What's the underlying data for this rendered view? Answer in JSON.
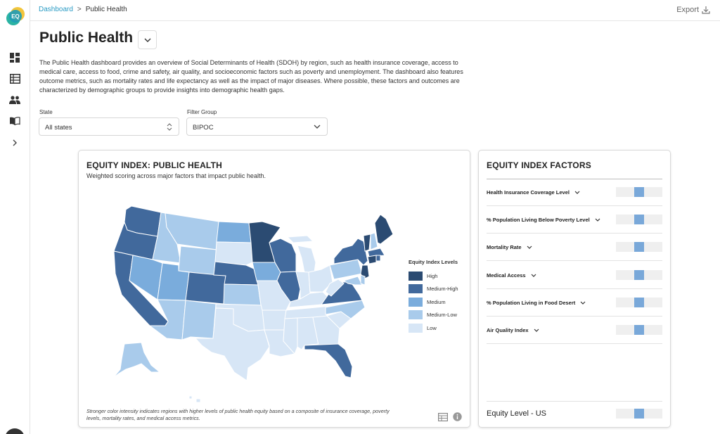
{
  "app": {
    "logo_text": "EQ"
  },
  "sidebar": {
    "items": [
      {
        "icon": "dashboard-icon"
      },
      {
        "icon": "table-icon"
      },
      {
        "icon": "people-icon"
      },
      {
        "icon": "book-icon"
      },
      {
        "icon": "chevron-right-icon"
      }
    ]
  },
  "breadcrumb": {
    "root": "Dashboard",
    "separator": ">",
    "current": "Public Health"
  },
  "topbar": {
    "export_label": "Export"
  },
  "page": {
    "title": "Public Health",
    "description": "The Public Health dashboard provides an overview of Social Determinants of Health (SDOH) by region, such as health insurance coverage, access to medical care, access to food, crime and safety, air quality, and socioeconomic factors such as poverty and unemployment. The dashboard also features outcome metrics, such as mortality rates and life expectancy as well as the impact of major diseases. Where possible, these factors and outcomes are characterized by demographic groups to provide insights into demographic health gaps."
  },
  "filters": {
    "state": {
      "label": "State",
      "value": "All states"
    },
    "group": {
      "label": "Filter Group",
      "value": "BIPOC"
    }
  },
  "map_card": {
    "title": "EQUITY INDEX: PUBLIC HEALTH",
    "subtitle": "Weighted scoring across major factors that impact public health.",
    "footnote": "Stronger color intensity indicates regions with higher levels of public health equity based on a composite of insurance coverage, poverty levels, mortality rates, and medical access metrics.",
    "legend_title": "Equity Index Levels",
    "levels": [
      {
        "label": "High",
        "color": "#2b4b72"
      },
      {
        "label": "Medium-High",
        "color": "#41699c"
      },
      {
        "label": "Medium",
        "color": "#7aacdc"
      },
      {
        "label": "Medium-Low",
        "color": "#a9cbeb"
      },
      {
        "label": "Low",
        "color": "#d7e6f6"
      }
    ]
  },
  "factors_card": {
    "title": "EQUITY INDEX FACTORS",
    "factors": [
      {
        "label": "Health Insurance Coverage Level",
        "value": 0.5
      },
      {
        "label": "% Population Living Below Poverty Level",
        "value": 0.5
      },
      {
        "label": "Mortality Rate",
        "value": 0.5
      },
      {
        "label": "Medical Access",
        "value": 0.5
      },
      {
        "label": "% Population Living in Food Desert",
        "value": 0.5
      },
      {
        "label": "Air Quality Index",
        "value": 0.5
      }
    ],
    "summary": {
      "label": "Equity Level - US",
      "value": 0.5
    }
  }
}
